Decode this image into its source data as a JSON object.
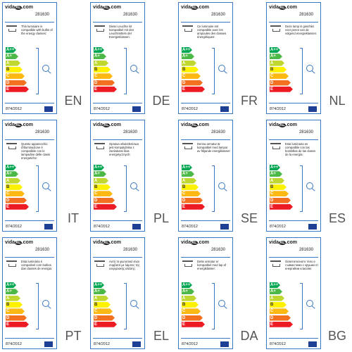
{
  "brand": {
    "name": "vida",
    "mark": "XL",
    "suffix": ".com"
  },
  "product_code": "281630",
  "energy_classes": [
    "A++",
    "A+",
    "A",
    "B",
    "C",
    "D",
    "E"
  ],
  "regulation": "874/2012",
  "labels": [
    {
      "lang": "EN",
      "description": "This luminaire is compatible with bulbs of the energy classes:"
    },
    {
      "lang": "DE",
      "description": "Diese Leuchte ist kompatibel mit den Leuchtmitteln der Energieklassen:"
    },
    {
      "lang": "FR",
      "description": "Ce luminaire est compatible avec les ampoules des classes énergétiques:"
    },
    {
      "lang": "NL",
      "description": "Deze lamp is geschikt voor peren van de volgend energieklassen:"
    },
    {
      "lang": "IT",
      "description": "Questo apparecchio d'illuminazione è compatibile con le lampadine delle classi energetiche:"
    },
    {
      "lang": "PL",
      "description": "Oprawa oświetleniowa jest kompatybilna z żarówkami klas energetycznych:"
    },
    {
      "lang": "SE",
      "description": "Denna armatur är kompatibel med lampor av följande energiklasser:"
    },
    {
      "lang": "ES",
      "description": "Esta luminaria es compatible con las bombillas de las clases de la energía:"
    },
    {
      "lang": "PT",
      "description": "Esta luminária é compatível com bulbos das classes de energia:"
    },
    {
      "lang": "EL",
      "description": "Αυτό το φωτιστικό είναι συμβατό με λάμπες της ενεργειακής κλάσης:"
    },
    {
      "lang": "DA",
      "description": "Dette armatur er kompatibel med lap af energiklasser:"
    },
    {
      "lang": "BG",
      "description": "Осветителното тяло е съвместимо с крушки от енергийни класове:"
    }
  ]
}
